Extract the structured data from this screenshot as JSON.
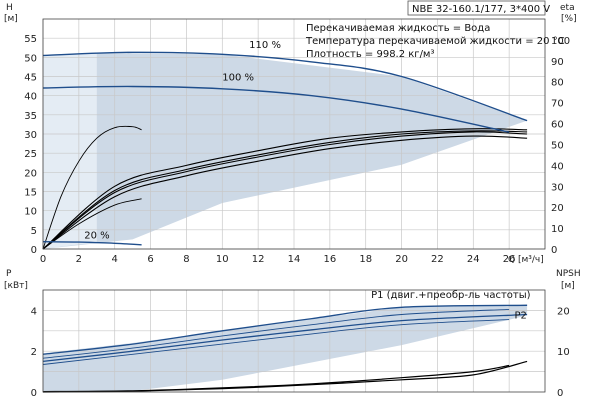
{
  "title_box": "NBE 32-160.1/177, 3*400 V",
  "info_lines": [
    "Перекачиваемая жидкость = Вода",
    "Температура перекачиваемой жидкости = 20 °C",
    "Плотность = 998.2 кг/м³"
  ],
  "colors": {
    "curve": "#1f4e8c",
    "envelope": "#cdd9e6",
    "envelope_light": "#e4ecf4",
    "grid": "#c8c8c8",
    "black_curve": "#000000"
  },
  "chart_data": [
    {
      "type": "line",
      "name": "head_efficiency",
      "xlabel": "Q [м³/ч]",
      "ylabel_left": "H",
      "ylabel_left_unit": "[м]",
      "ylabel_right": "eta",
      "ylabel_right_unit": "[%]",
      "xlim": [
        0,
        28
      ],
      "ylim_left": [
        0,
        60
      ],
      "ylim_right": [
        0,
        110
      ],
      "x_ticks": [
        0,
        2,
        4,
        6,
        8,
        10,
        12,
        14,
        16,
        18,
        20,
        22,
        24,
        26
      ],
      "y_ticks_left": [
        0,
        5,
        10,
        15,
        20,
        25,
        30,
        35,
        40,
        45,
        50,
        55
      ],
      "y_ticks_right": [
        0,
        10,
        20,
        30,
        40,
        50,
        60,
        70,
        80,
        90,
        100
      ],
      "grid": true,
      "head_curves": [
        {
          "label": "110 %",
          "x": [
            0,
            5,
            10,
            15,
            20,
            27
          ],
          "y": [
            50.5,
            51.3,
            50.8,
            48.8,
            45.0,
            33.5
          ]
        },
        {
          "label": "100 %",
          "x": [
            0,
            5,
            10,
            15,
            20,
            26
          ],
          "y": [
            42.0,
            42.4,
            41.8,
            40.0,
            36.5,
            30.5
          ]
        },
        {
          "label": "20 %",
          "x": [
            0,
            2,
            4,
            5.5
          ],
          "y": [
            1.9,
            1.8,
            1.5,
            1.1
          ]
        }
      ],
      "efficiency_curves": [
        {
          "x": [
            0,
            1,
            2,
            3,
            4,
            5,
            5.5
          ],
          "y": [
            0,
            25,
            42,
            53,
            58,
            58.5,
            57
          ]
        },
        {
          "x": [
            0,
            2,
            4,
            5.5
          ],
          "y": [
            0,
            12,
            21,
            24
          ]
        },
        {
          "x": [
            0,
            4,
            8,
            12,
            16,
            20,
            24,
            27
          ],
          "y": [
            0,
            30,
            40,
            47,
            53,
            56,
            57.5,
            57
          ]
        },
        {
          "x": [
            0,
            4,
            8,
            12,
            16,
            20,
            24,
            27
          ],
          "y": [
            0,
            27,
            37,
            44,
            50,
            54,
            56,
            55
          ]
        },
        {
          "x": [
            0,
            4,
            8,
            12,
            16,
            20,
            24,
            27
          ],
          "y": [
            0,
            25,
            35,
            42,
            48,
            52,
            54,
            53
          ]
        },
        {
          "x": [
            0,
            4,
            8,
            12,
            16,
            20,
            24,
            27
          ],
          "y": [
            0,
            28,
            38,
            45,
            51,
            55,
            56.5,
            56
          ]
        }
      ],
      "envelope": {
        "x": [
          0,
          3,
          10,
          20,
          27,
          20,
          10,
          5,
          0
        ],
        "y": [
          50.5,
          51.2,
          50.8,
          45.0,
          33.5,
          22,
          12,
          2.5,
          0
        ]
      },
      "envelope_light": {
        "x": [
          0,
          3,
          3,
          0
        ],
        "y": [
          0,
          1.8,
          51.2,
          50.5
        ]
      }
    },
    {
      "type": "line",
      "name": "power_npsh",
      "xlabel": "",
      "ylabel_left": "P",
      "ylabel_left_unit": "[кВт]",
      "ylabel_right": "NPSH",
      "ylabel_right_unit": "[м]",
      "xlim": [
        0,
        28
      ],
      "ylim_left": [
        0,
        5
      ],
      "ylim_right": [
        0,
        25
      ],
      "y_ticks_left": [
        0,
        2,
        4
      ],
      "y_ticks_right": [
        0,
        10,
        20
      ],
      "grid": true,
      "power_curves": [
        {
          "label": "P1 (двиг.+преобр-ль частоты)",
          "x": [
            0,
            5,
            10,
            15,
            20,
            27
          ],
          "y": [
            1.85,
            2.35,
            3.0,
            3.6,
            4.15,
            4.25
          ]
        },
        {
          "label": "P2",
          "x": [
            0,
            5,
            10,
            15,
            20,
            27
          ],
          "y": [
            1.5,
            2.0,
            2.55,
            3.05,
            3.5,
            3.8
          ]
        },
        {
          "label": "",
          "x": [
            0,
            5,
            10,
            15,
            20,
            26
          ],
          "y": [
            1.65,
            2.15,
            2.75,
            3.3,
            3.8,
            4.05
          ]
        },
        {
          "label": "",
          "x": [
            0,
            5,
            10,
            15,
            20,
            26
          ],
          "y": [
            1.35,
            1.85,
            2.35,
            2.85,
            3.3,
            3.55
          ]
        }
      ],
      "npsh_curves": [
        {
          "x": [
            0,
            5,
            10,
            15,
            20,
            24,
            26
          ],
          "y": [
            0.1,
            0.3,
            1.0,
            2.0,
            3.5,
            5.0,
            6.5
          ]
        },
        {
          "x": [
            0,
            5,
            10,
            15,
            20,
            24,
            27
          ],
          "y": [
            0.0,
            0.2,
            0.8,
            1.8,
            3.0,
            4.2,
            7.5
          ]
        }
      ],
      "envelope": {
        "x": [
          0,
          5,
          10,
          20,
          27,
          27,
          20,
          10,
          5,
          0
        ],
        "y": [
          1.9,
          2.4,
          3.0,
          4.15,
          4.3,
          3.75,
          2.3,
          0.6,
          0.05,
          0
        ]
      }
    }
  ]
}
